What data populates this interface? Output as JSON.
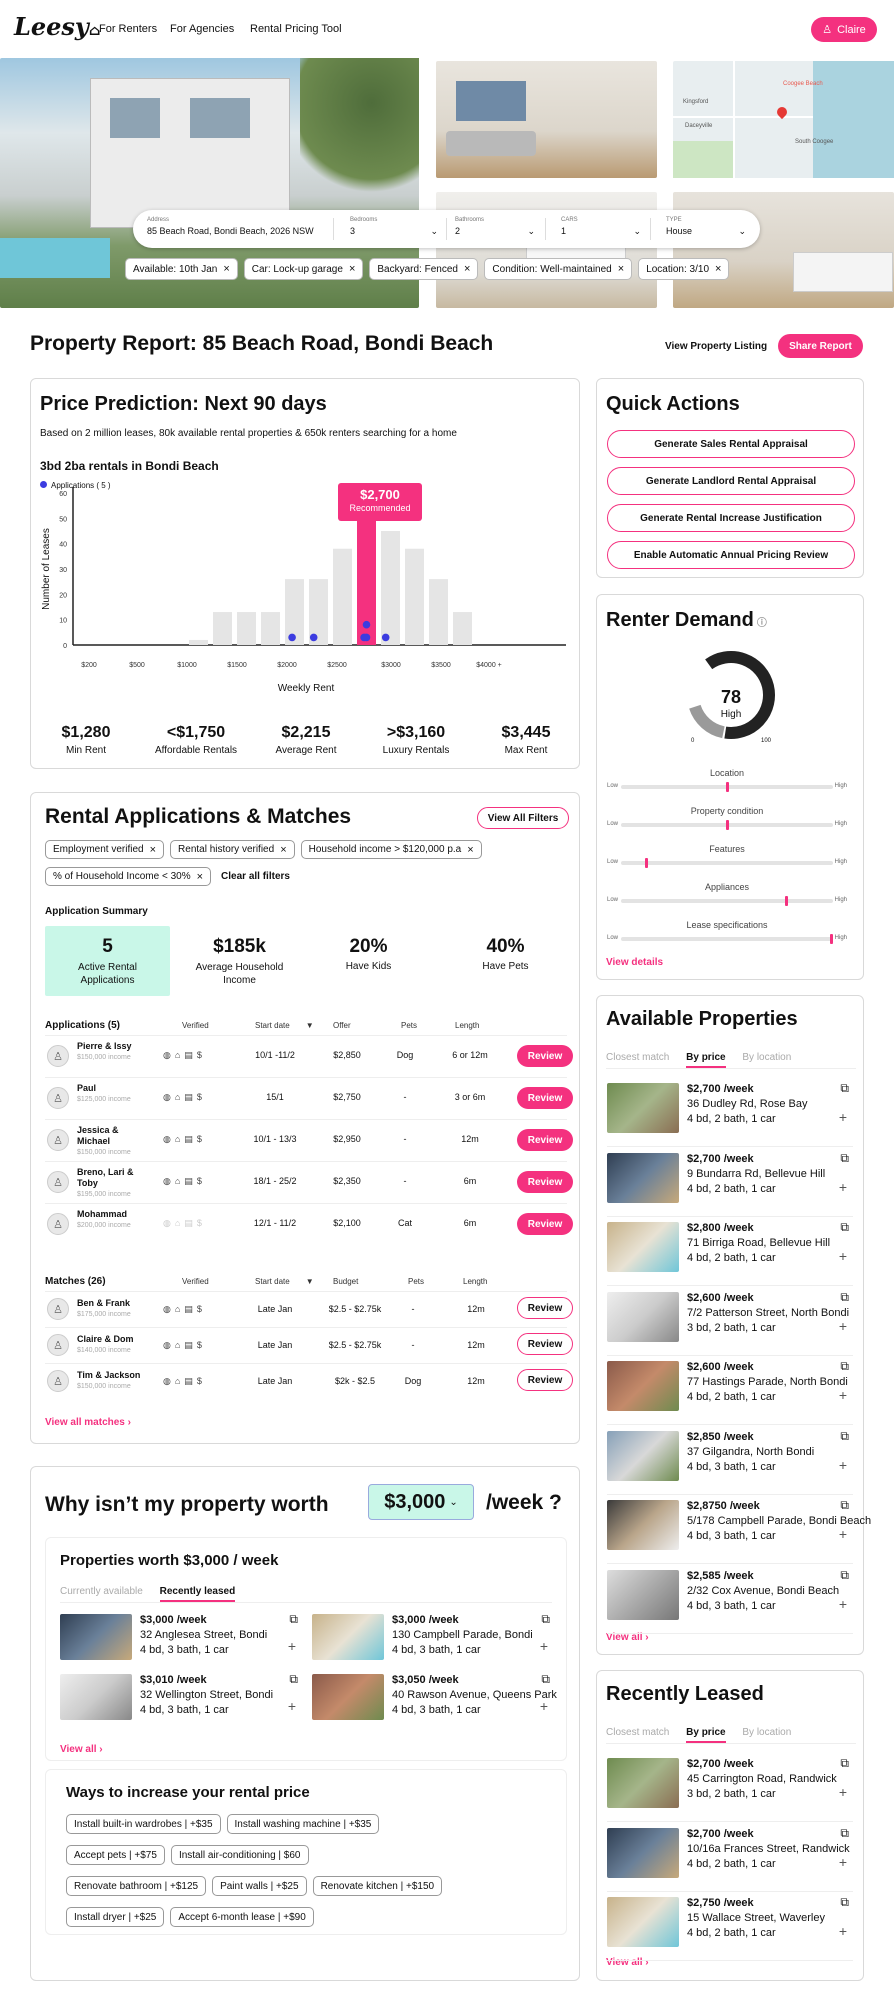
{
  "nav": {
    "logo": "Leesy",
    "links": [
      "For Renters",
      "For Agencies",
      "Rental Pricing Tool"
    ],
    "user": "Claire"
  },
  "search": {
    "address_label": "Address",
    "address_value": "85 Beach Road, Bondi Beach, 2026 NSW",
    "bedrooms_label": "Bedrooms",
    "bedrooms_value": "3",
    "bathrooms_label": "Bathrooms",
    "bathrooms_value": "2",
    "cars_label": "CARS",
    "cars_value": "1",
    "type_label": "TYPE",
    "type_value": "House"
  },
  "filters": [
    "Available: 10th Jan",
    "Car: Lock-up garage",
    "Backyard: Fenced",
    "Condition: Well-maintained",
    "Location: 3/10"
  ],
  "map": {
    "labels": [
      "Kingsford",
      "Daceyville",
      "South Coogee",
      "Coogee Beach"
    ]
  },
  "report": {
    "title": "Property Report: 85 Beach Road, Bondi Beach",
    "view_listing": "View Property Listing",
    "share": "Share Report"
  },
  "price": {
    "title": "Price Prediction: Next 90 days",
    "subtitle": "Based on 2 million leases, 80k available rental properties & 650k renters searching for a home",
    "chart_title": "3bd 2ba rentals in Bondi Beach",
    "legend": "Applications ( 5 )",
    "tooltip_price": "$2,700",
    "tooltip_label": "Recommended",
    "stats": [
      {
        "value": "$1,280",
        "label": "Min Rent"
      },
      {
        "value": "<$1,750",
        "label": "Affordable Rentals"
      },
      {
        "value": "$2,215",
        "label": "Average Rent"
      },
      {
        "value": ">$3,160",
        "label": "Luxury Rentals"
      },
      {
        "value": "$3,445",
        "label": "Max Rent"
      }
    ]
  },
  "chart_data": {
    "type": "bar",
    "xlabel": "Weekly Rent",
    "ylabel": "Number of Leases",
    "ylim": [
      0,
      60
    ],
    "yticks": [
      "60",
      "50",
      "40",
      "30",
      "20",
      "10",
      "0"
    ],
    "xticks": [
      "$200",
      "$500",
      "$1000",
      "$1500",
      "$2000",
      "$2500",
      "$3000",
      "$3500",
      "$4000 +"
    ],
    "values": [
      0,
      0,
      0,
      2,
      13,
      13,
      13,
      26,
      26,
      38,
      51,
      45,
      38,
      26,
      13,
      0
    ],
    "highlight_index": 10,
    "applications": [
      {
        "bin": 6.9,
        "y": 3
      },
      {
        "bin": 7.8,
        "y": 3
      },
      {
        "bin": 9.9,
        "y": 3
      },
      {
        "bin": 10.0,
        "y": 8
      },
      {
        "bin": 10.0,
        "y": 3
      },
      {
        "bin": 10.8,
        "y": 3
      }
    ],
    "grid": false,
    "legend_position": "top-left"
  },
  "quick_actions": {
    "title": "Quick Actions",
    "items": [
      "Generate Sales Rental Appraisal",
      "Generate Landlord Rental Appraisal",
      "Generate Rental Increase Justification",
      "Enable Automatic Annual Pricing Review"
    ]
  },
  "demand": {
    "title": "Renter Demand",
    "gauge_value": "78",
    "gauge_level": 0.78,
    "gauge_label": "High",
    "gauge_min": "0",
    "gauge_max": "100",
    "low": "Low",
    "high": "High",
    "sliders": [
      {
        "label": "Location",
        "level": 0.5
      },
      {
        "label": "Property condition",
        "level": 0.5
      },
      {
        "label": "Features",
        "level": 0.12
      },
      {
        "label": "Appliances",
        "level": 0.78
      },
      {
        "label": "Lease specifications",
        "level": 0.99
      }
    ],
    "link": "View details"
  },
  "applications": {
    "title": "Rental Applications & Matches",
    "view_filters": "View All Filters",
    "chips": [
      "Employment verified",
      "Rental history verified",
      "Household income > $120,000 p.a",
      "% of Household Income < 30%"
    ],
    "clear": "Clear all filters",
    "summary_title": "Application Summary",
    "summary": [
      {
        "value": "5",
        "label": "Active Rental Applications"
      },
      {
        "value": "$185k",
        "label": "Average Household Income"
      },
      {
        "value": "20%",
        "label": "Have Kids"
      },
      {
        "value": "40%",
        "label": "Have Pets"
      }
    ],
    "app_header": {
      "title": "Applications (5)",
      "verified": "Verified",
      "start": "Start date",
      "offer": "Offer",
      "pets": "Pets",
      "length": "Length"
    },
    "apps": [
      {
        "name": "Pierre & Issy",
        "income": "$150,000 income",
        "start": "10/1 -11/2",
        "offer": "$2,850",
        "pets": "Dog",
        "length": "6 or 12m",
        "action": "Review"
      },
      {
        "name": "Paul",
        "income": "$125,000 income",
        "start": "15/1",
        "offer": "$2,750",
        "pets": "-",
        "length": "3 or 6m",
        "action": "Review"
      },
      {
        "name": "Jessica & Michael",
        "income": "$150,000 income",
        "start": "10/1 - 13/3",
        "offer": "$2,950",
        "pets": "-",
        "length": "12m",
        "action": "Review"
      },
      {
        "name": "Breno, Lari & Toby",
        "income": "$195,000 income",
        "start": "18/1 - 25/2",
        "offer": "$2,350",
        "pets": "-",
        "length": "6m",
        "action": "Review"
      },
      {
        "name": "Mohammad",
        "income": "$200,000 income",
        "start": "12/1 - 11/2",
        "offer": "$2,100",
        "pets": "Cat",
        "length": "6m",
        "action": "Review"
      }
    ],
    "match_header": {
      "title": "Matches (26)",
      "verified": "Verified",
      "start": "Start date",
      "budget": "Budget",
      "pets": "Pets",
      "length": "Length"
    },
    "matches": [
      {
        "name": "Ben & Frank",
        "income": "$175,000 income",
        "start": "Late Jan",
        "budget": "$2.5 - $2.75k",
        "pets": "-",
        "length": "12m",
        "action": "Review"
      },
      {
        "name": "Claire & Dom",
        "income": "$140,000 income",
        "start": "Late Jan",
        "budget": "$2.5 - $2.75k",
        "pets": "-",
        "length": "12m",
        "action": "Review"
      },
      {
        "name": "Tim & Jackson",
        "income": "$150,000 income",
        "start": "Late Jan",
        "budget": "$2k - $2.5",
        "pets": "Dog",
        "length": "12m",
        "action": "Review"
      }
    ],
    "view_all": "View all matches"
  },
  "worth": {
    "title_pre": "Why isn’t my property worth",
    "amount": "$3,000",
    "title_post": "/week ?",
    "sub_title": "Properties worth $3,000 / week",
    "tabs": [
      "Currently available",
      "Recently leased"
    ],
    "props": [
      {
        "price": "$3,000 /week",
        "address": "32 Anglesea Street, Bondi",
        "specs": "4 bd, 3 bath, 1 car"
      },
      {
        "price": "$3,000 /week",
        "address": "130 Campbell Parade, Bondi",
        "specs": "4 bd, 3 bath, 1 car"
      },
      {
        "price": "$3,010 /week",
        "address": "32 Wellington Street, Bondi",
        "specs": "4 bd, 3 bath, 1 car"
      },
      {
        "price": "$3,050 /week",
        "address": "40 Rawson Avenue, Queens Park",
        "specs": "4 bd, 3 bath, 1 car"
      }
    ],
    "view_all": "View all",
    "ways_title": "Ways to increase your rental price",
    "ways": [
      "Install built-in wardrobes | +$35",
      "Install washing machine | +$35",
      "Accept pets | +$75",
      "Install air-conditioning | $60",
      "Renovate bathroom | +$125",
      "Paint walls | +$25",
      "Renovate kitchen | +$150",
      "Install dryer | +$25",
      "Accept 6-month lease | +$90"
    ]
  },
  "available": {
    "title": "Available Properties",
    "tabs": [
      "Closest match",
      "By price",
      "By location"
    ],
    "items": [
      {
        "price": "$2,700 /week",
        "address": "36 Dudley Rd, Rose Bay",
        "specs": "4 bd, 2 bath, 1 car"
      },
      {
        "price": "$2,700 /week",
        "address": "9 Bundarra Rd, Bellevue Hill",
        "specs": "4 bd, 2 bath, 1 car"
      },
      {
        "price": "$2,800 /week",
        "address": "71 Birriga Road, Bellevue Hill",
        "specs": "4 bd, 2 bath, 1 car"
      },
      {
        "price": "$2,600 /week",
        "address": "7/2 Patterson Street, North Bondi",
        "specs": "3 bd, 2 bath, 1 car"
      },
      {
        "price": "$2,600 /week",
        "address": "77 Hastings Parade, North Bondi",
        "specs": "4 bd, 2 bath, 1 car"
      },
      {
        "price": "$2,850 /week",
        "address": "37 Gilgandra, North Bondi",
        "specs": "4 bd, 3 bath, 1 car"
      },
      {
        "price": "$2,8750 /week",
        "address": "5/178 Campbell Parade, Bondi Beach",
        "specs": "4 bd, 3 bath, 1 car"
      },
      {
        "price": "$2,585 /week",
        "address": "2/32 Cox Avenue, Bondi Beach",
        "specs": "4 bd, 3 bath, 1 car"
      }
    ],
    "view_all": "View all"
  },
  "leased": {
    "title": "Recently Leased",
    "tabs": [
      "Closest match",
      "By price",
      "By location"
    ],
    "items": [
      {
        "price": "$2,700 /week",
        "address": "45 Carrington Road, Randwick",
        "specs": "3 bd, 2 bath, 1 car"
      },
      {
        "price": "$2,700 /week",
        "address": "10/16a Frances Street, Randwick",
        "specs": "4 bd, 2 bath, 1 car"
      },
      {
        "price": "$2,750 /week",
        "address": "15 Wallace Street, Waverley",
        "specs": "4 bd, 2 bath, 1 car"
      }
    ],
    "view_all": "View all"
  }
}
